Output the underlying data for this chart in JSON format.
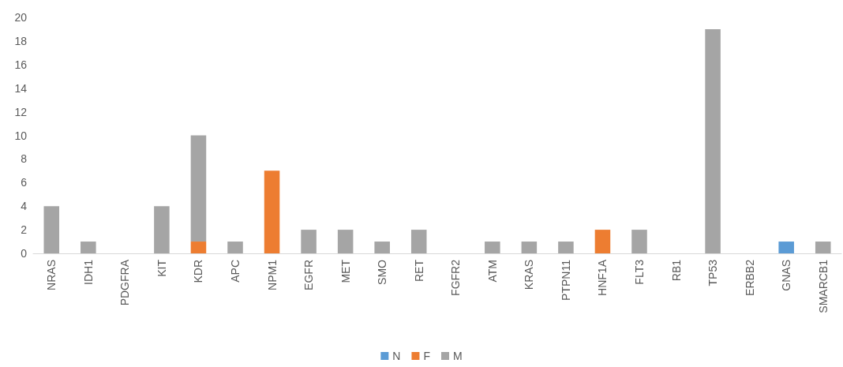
{
  "chart_data": {
    "type": "bar",
    "stacked": true,
    "categories": [
      "NRAS",
      "IDH1",
      "PDGFRA",
      "KIT",
      "KDR",
      "APC",
      "NPM1",
      "EGFR",
      "MET",
      "SMO",
      "RET",
      "FGFR2",
      "ATM",
      "KRAS",
      "PTPN11",
      "HNF1A",
      "FLT3",
      "RB1",
      "TP53",
      "ERBB2",
      "GNAS",
      "SMARCB1"
    ],
    "series": [
      {
        "name": "N",
        "color": "#5b9bd5",
        "values": [
          0,
          0,
          0,
          0,
          0,
          0,
          0,
          0,
          0,
          0,
          0,
          0,
          0,
          0,
          0,
          0,
          0,
          0,
          0,
          0,
          1,
          0
        ]
      },
      {
        "name": "F",
        "color": "#ed7d31",
        "values": [
          0,
          0,
          0,
          0,
          1,
          0,
          7,
          0,
          0,
          0,
          0,
          0,
          0,
          0,
          0,
          2,
          0,
          0,
          0,
          0,
          0,
          0
        ]
      },
      {
        "name": "M",
        "color": "#a5a5a5",
        "values": [
          4,
          1,
          0,
          4,
          9,
          1,
          0,
          2,
          2,
          1,
          2,
          0,
          1,
          1,
          1,
          0,
          2,
          0,
          19,
          0,
          0,
          1
        ]
      }
    ],
    "ylim": [
      0,
      20
    ],
    "yticks": [
      0,
      2,
      4,
      6,
      8,
      10,
      12,
      14,
      16,
      18,
      20
    ],
    "grid": false,
    "legend": "bottom"
  }
}
